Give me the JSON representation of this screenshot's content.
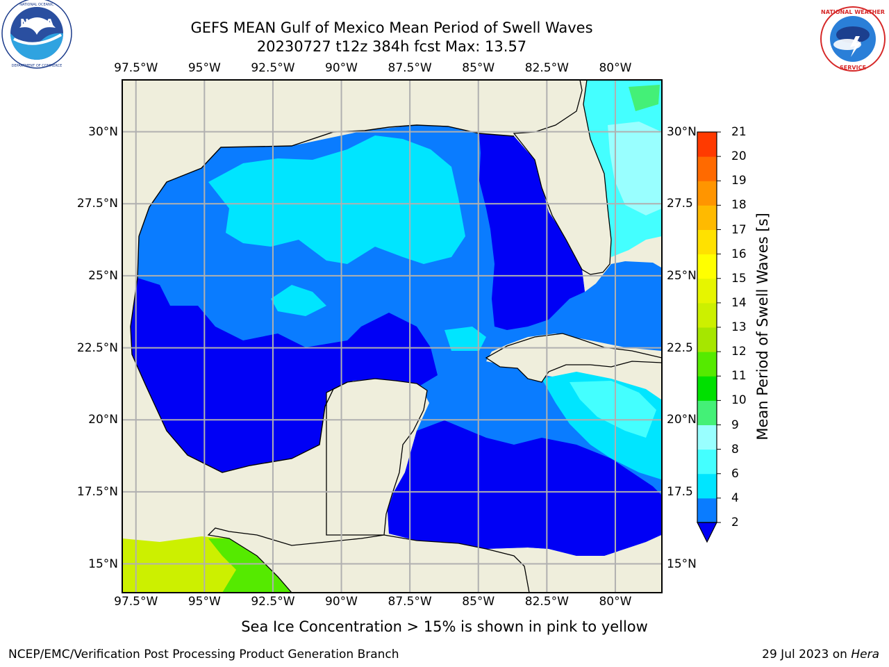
{
  "title_line1": "GEFS MEAN Gulf of Mexico Mean Period of Swell Waves",
  "title_line2": "20230727 t12z 384h fcst   Max: 13.57",
  "logos": {
    "left": {
      "name": "NOAA",
      "ring_text": "NATIONAL OCEANIC AND ATMOSPHERIC ADMINISTRATION",
      "ring_text_bottom": "U.S. DEPARTMENT OF COMMERCE"
    },
    "right": {
      "ring_text": "NATIONAL WEATHER SERVICE"
    }
  },
  "map": {
    "lon_ticks": [
      "97.5°W",
      "95°W",
      "92.5°W",
      "90°W",
      "87.5°W",
      "85°W",
      "82.5°W",
      "80°W"
    ],
    "lat_ticks_left": [
      "30°N",
      "27.5°N",
      "25°N",
      "22.5°N",
      "20°N",
      "17.5°N",
      "15°N"
    ],
    "lat_ticks_right": [
      "30°N",
      "27.5",
      "25°N",
      "22.5",
      "20°N",
      "17.5",
      "15°N"
    ],
    "extent": {
      "lon_min": -98,
      "lon_max": -78.3,
      "lat_min": 14,
      "lat_max": 31.8
    },
    "land_color": "#efeedc",
    "grid": true
  },
  "colorbar": {
    "title": "Mean Period of Swell Waves [s]",
    "levels": [
      2,
      4,
      6,
      8,
      9,
      10,
      11,
      12,
      13,
      14,
      15,
      16,
      17,
      18,
      19,
      20,
      21
    ],
    "colors": [
      "#0a7cff",
      "#00e5ff",
      "#44ffff",
      "#99ffff",
      "#44f077",
      "#00e000",
      "#55ea00",
      "#a6e600",
      "#ccf000",
      "#e6f500",
      "#ffff00",
      "#ffe100",
      "#ffba00",
      "#ff9500",
      "#ff6a00",
      "#ff3a00"
    ],
    "under_color": "#0000f5",
    "extend": "min"
  },
  "note": "Sea Ice Concentration > 15% is shown in pink to yellow",
  "footer_left": "NCEP/EMC/Verification Post Processing Product Generation Branch",
  "footer_date": "29 Jul 2023 on ",
  "footer_machine": "Hera"
}
